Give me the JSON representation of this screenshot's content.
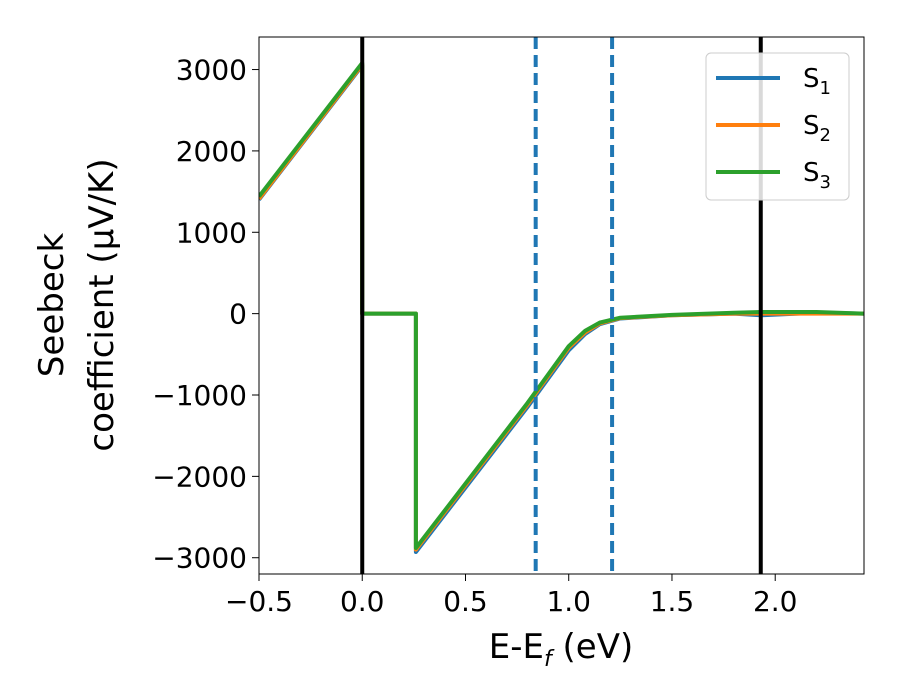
{
  "chart_data": {
    "type": "line",
    "title": "",
    "xlabel": "E-E",
    "xlabel_sub": "f",
    "xlabel_unit": " (eV)",
    "ylabel_line1": "Seebeck",
    "ylabel_line2": "coefficient  (μV/K)",
    "xlim": [
      -0.5,
      2.43
    ],
    "ylim": [
      -3200,
      3400
    ],
    "xticks": [
      -0.5,
      0.0,
      0.5,
      1.0,
      1.5,
      2.0
    ],
    "xtick_labels": [
      "−0.5",
      "0.0",
      "0.5",
      "1.0",
      "1.5",
      "2.0"
    ],
    "yticks": [
      -3000,
      -2000,
      -1000,
      0,
      1000,
      2000,
      3000
    ],
    "ytick_labels": [
      "−3000",
      "−2000",
      "−1000",
      "0",
      "1000",
      "2000",
      "3000"
    ],
    "grid": false,
    "legend_position": "top-right",
    "series": [
      {
        "name": "S",
        "sub": "1",
        "color": "#1f77b4",
        "points": [
          [
            -0.5,
            1400
          ],
          [
            0.0,
            3050
          ],
          [
            0.0,
            0
          ],
          [
            0.26,
            0
          ],
          [
            0.26,
            -2930
          ],
          [
            0.8,
            -1150
          ],
          [
            1.0,
            -450
          ],
          [
            1.08,
            -250
          ],
          [
            1.15,
            -130
          ],
          [
            1.25,
            -60
          ],
          [
            1.5,
            -20
          ],
          [
            1.8,
            0
          ],
          [
            1.93,
            -20
          ],
          [
            2.2,
            10
          ],
          [
            2.43,
            0
          ]
        ]
      },
      {
        "name": "S",
        "sub": "2",
        "color": "#ff7f0e",
        "points": [
          [
            -0.5,
            1410
          ],
          [
            0.0,
            3060
          ],
          [
            0.0,
            0
          ],
          [
            0.26,
            0
          ],
          [
            0.26,
            -2900
          ],
          [
            0.8,
            -1120
          ],
          [
            1.0,
            -420
          ],
          [
            1.08,
            -230
          ],
          [
            1.15,
            -120
          ],
          [
            1.25,
            -55
          ],
          [
            1.5,
            -20
          ],
          [
            1.8,
            0
          ],
          [
            1.93,
            0
          ],
          [
            2.2,
            0
          ],
          [
            2.43,
            0
          ]
        ]
      },
      {
        "name": "S",
        "sub": "3",
        "color": "#2ca02c",
        "points": [
          [
            -0.5,
            1440
          ],
          [
            0.0,
            3080
          ],
          [
            0.0,
            0
          ],
          [
            0.26,
            0
          ],
          [
            0.26,
            -2880
          ],
          [
            0.8,
            -1100
          ],
          [
            1.0,
            -400
          ],
          [
            1.08,
            -210
          ],
          [
            1.15,
            -110
          ],
          [
            1.25,
            -50
          ],
          [
            1.5,
            -15
          ],
          [
            1.8,
            10
          ],
          [
            1.93,
            20
          ],
          [
            2.2,
            20
          ],
          [
            2.43,
            0
          ]
        ]
      }
    ],
    "vlines_solid": [
      0.0,
      1.93
    ],
    "vlines_dashed": [
      0.84,
      1.21
    ],
    "vline_solid_color": "#000000",
    "vline_dashed_color": "#1f77b4"
  }
}
